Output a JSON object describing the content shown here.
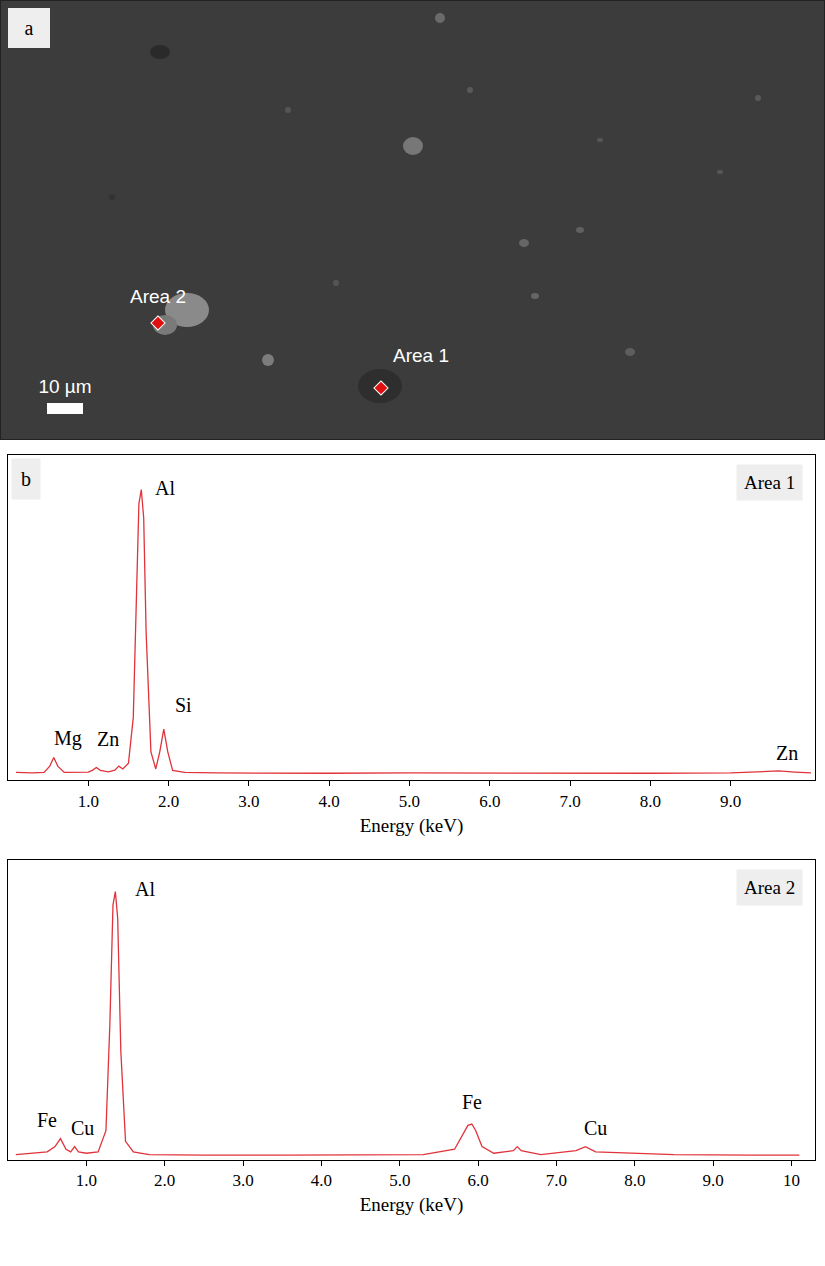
{
  "micrograph": {
    "panel_label": "a",
    "scale_bar": "10 µm",
    "areas": [
      "Area 2",
      "Area 1"
    ]
  },
  "spectra_panel_label": "b",
  "chart_data": [
    {
      "type": "line",
      "title": "Area 1",
      "x_label": "Energy (keV)",
      "color": "#e0333b",
      "x": [
        0.1,
        0.3,
        0.45,
        0.52,
        0.57,
        0.62,
        0.7,
        0.9,
        1.0,
        1.05,
        1.1,
        1.15,
        1.25,
        1.33,
        1.38,
        1.43,
        1.5,
        1.56,
        1.6,
        1.63,
        1.66,
        1.69,
        1.72,
        1.78,
        1.84,
        1.89,
        1.94,
        1.99,
        2.05,
        2.2,
        2.6,
        3.0,
        3.5,
        4,
        5,
        6,
        7,
        8,
        9,
        9.4,
        9.6,
        9.8,
        10
      ],
      "values": [
        0.8,
        0.6,
        0.8,
        3,
        6,
        3,
        0.8,
        0.7,
        0.9,
        1.5,
        2.5,
        1.5,
        1,
        1.6,
        3,
        2,
        4,
        20,
        60,
        95,
        100,
        90,
        50,
        8,
        2,
        8,
        16,
        8,
        1.5,
        0.8,
        0.6,
        0.5,
        0.6,
        0.5,
        0.6,
        0.5,
        0.6,
        0.5,
        0.6,
        0.9,
        1.3,
        0.9,
        0.6
      ],
      "xlim": [
        0,
        10.05
      ],
      "xticks": [
        {
          "value": 1,
          "label": "1.0"
        },
        {
          "value": 2,
          "label": "2.0"
        },
        {
          "value": 3,
          "label": "3.0"
        },
        {
          "value": 4,
          "label": "4.0"
        },
        {
          "value": 5,
          "label": "5.0"
        },
        {
          "value": 6,
          "label": "6.0"
        },
        {
          "value": 7,
          "label": "7.0"
        },
        {
          "value": 8,
          "label": "8.0"
        },
        {
          "value": 9,
          "label": "9.0"
        }
      ],
      "ylim": [
        -2,
        112
      ],
      "yticks": [],
      "tick_labels": "x",
      "grid": false,
      "annotations": [
        {
          "text": "Al",
          "x": 1.95,
          "y": 96
        },
        {
          "text": "Si",
          "x": 2.18,
          "y": 20
        },
        {
          "text": "Mg",
          "x": 0.75,
          "y": 8
        },
        {
          "text": "Zn",
          "x": 1.25,
          "y": 8
        },
        {
          "text": "Zn",
          "x": 9.7,
          "y": 3
        }
      ]
    },
    {
      "type": "line",
      "title": "Area 2",
      "x_label": "Energy (keV)",
      "color": "#e0333b",
      "x": [
        0.1,
        0.3,
        0.5,
        0.6,
        0.67,
        0.74,
        0.8,
        0.85,
        0.9,
        1.0,
        1.15,
        1.25,
        1.3,
        1.34,
        1.37,
        1.4,
        1.44,
        1.5,
        1.6,
        1.8,
        2.5,
        3.5,
        4.5,
        5.3,
        5.7,
        5.8,
        5.87,
        5.92,
        5.97,
        6.05,
        6.2,
        6.45,
        6.5,
        6.55,
        6.8,
        7.25,
        7.37,
        7.5,
        8.5,
        9.5,
        10.1
      ],
      "values": [
        1,
        1.5,
        2,
        4,
        7,
        3,
        2,
        4,
        2,
        1.5,
        2,
        10,
        50,
        95,
        100,
        90,
        40,
        6,
        2,
        1,
        0.8,
        0.8,
        0.9,
        1,
        3,
        8,
        12,
        12.5,
        10,
        4,
        1.5,
        2.5,
        4,
        2.5,
        1,
        2.5,
        4,
        2,
        1,
        0.8,
        0.8
      ],
      "xlim": [
        0,
        10.3
      ],
      "xticks": [
        {
          "value": 1,
          "label": "1.0"
        },
        {
          "value": 2,
          "label": "2.0"
        },
        {
          "value": 3,
          "label": "3.0"
        },
        {
          "value": 4,
          "label": "4.0"
        },
        {
          "value": 5,
          "label": "5.0"
        },
        {
          "value": 6,
          "label": "6.0"
        },
        {
          "value": 7,
          "label": "7.0"
        },
        {
          "value": 8,
          "label": "8.0"
        },
        {
          "value": 9,
          "label": "9.0"
        },
        10
      ],
      "ylim": [
        -1,
        112
      ],
      "yticks": [],
      "tick_labels": "x",
      "grid": false,
      "annotations": [
        {
          "text": "Al",
          "x": 1.75,
          "y": 96
        },
        {
          "text": "Fe",
          "x": 0.5,
          "y": 9
        },
        {
          "text": "Cu",
          "x": 0.95,
          "y": 6
        },
        {
          "text": "Fe",
          "x": 5.92,
          "y": 16
        },
        {
          "text": "Cu",
          "x": 7.5,
          "y": 6
        }
      ]
    }
  ]
}
